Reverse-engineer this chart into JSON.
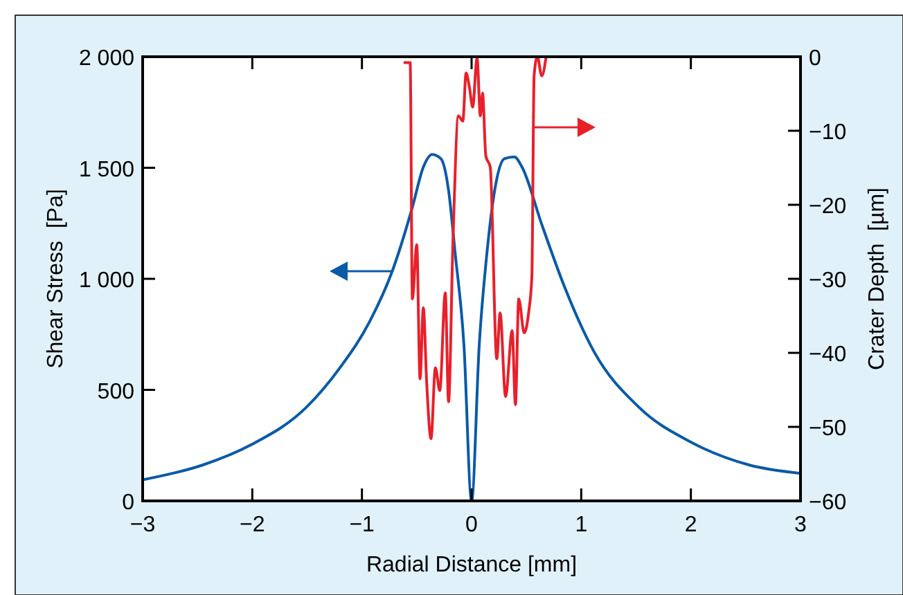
{
  "chart_data": {
    "type": "line",
    "xlabel": "Radial Distance [mm]",
    "ylabel": "Shear Stress  [Pa]",
    "y2label": "Crater Depth  [µm]",
    "xlim": [
      -3,
      3
    ],
    "xticks": [
      {
        "value": -3,
        "label": "−3"
      },
      {
        "value": -2,
        "label": "−2"
      },
      {
        "value": -1,
        "label": "−1"
      },
      0,
      1,
      2,
      3
    ],
    "ylim": [
      0,
      2000
    ],
    "yticks": [
      0,
      500,
      {
        "value": 1000,
        "label": "1 000"
      },
      {
        "value": 1500,
        "label": "1 500"
      },
      {
        "value": 2000,
        "label": "2 000"
      }
    ],
    "y2lim": [
      -60,
      0
    ],
    "y2ticks": [
      {
        "value": -60,
        "label": "−60"
      },
      {
        "value": -50,
        "label": "−50"
      },
      {
        "value": -40,
        "label": "−40"
      },
      {
        "value": -30,
        "label": "−30"
      },
      {
        "value": -20,
        "label": "−20"
      },
      {
        "value": -10,
        "label": "−10"
      },
      0
    ],
    "grid": false,
    "series": [
      {
        "color": "#0a5aa8",
        "x": [
          -3,
          -2.45,
          -2.01,
          -1.51,
          -1.2,
          -0.93,
          -0.72,
          -0.54,
          -0.44,
          -0.36,
          -0.28,
          -0.21,
          -0.15,
          -0.07,
          0,
          0.07,
          0.14,
          0.22,
          0.3,
          0.39,
          0.46,
          0.64,
          0.85,
          1.11,
          1.53,
          2,
          2.53,
          3
        ],
        "values": [
          95,
          162,
          253,
          420,
          600,
          807,
          1039,
          1322,
          1503,
          1560,
          1541,
          1399,
          1116,
          704,
          0,
          704,
          1116,
          1425,
          1541,
          1549,
          1503,
          1245,
          961,
          678,
          420,
          265,
          162,
          124
        ]
      },
      {
        "color": "#e8202a",
        "axis": "y2",
        "x": [
          -0.62,
          -0.56,
          -0.54,
          -0.5,
          -0.47,
          -0.44,
          -0.41,
          -0.37,
          -0.33,
          -0.29,
          -0.24,
          -0.21,
          -0.17,
          -0.12,
          -0.08,
          -0.05,
          -0.02,
          0.01,
          0.05,
          0.08,
          0.1,
          0.13,
          0.17,
          0.23,
          0.26,
          0.31,
          0.37,
          0.4,
          0.43,
          0.48,
          0.52,
          0.55,
          0.57,
          0.6,
          0.64,
          0.68
        ],
        "values": [
          -0.8,
          -0.8,
          -32.7,
          -25.4,
          -43.5,
          -33.9,
          -43.9,
          -51.6,
          -42,
          -45.1,
          -31.9,
          -46.6,
          -25,
          -8,
          -8.7,
          -2.2,
          -4.1,
          -6.8,
          -0.2,
          -8,
          -4.9,
          -13.4,
          -14.9,
          -40.8,
          -34.6,
          -45.9,
          -37,
          -47,
          -32.7,
          -37.3,
          -34.6,
          -29.6,
          -2.6,
          0,
          -2.6,
          0
        ]
      }
    ]
  }
}
